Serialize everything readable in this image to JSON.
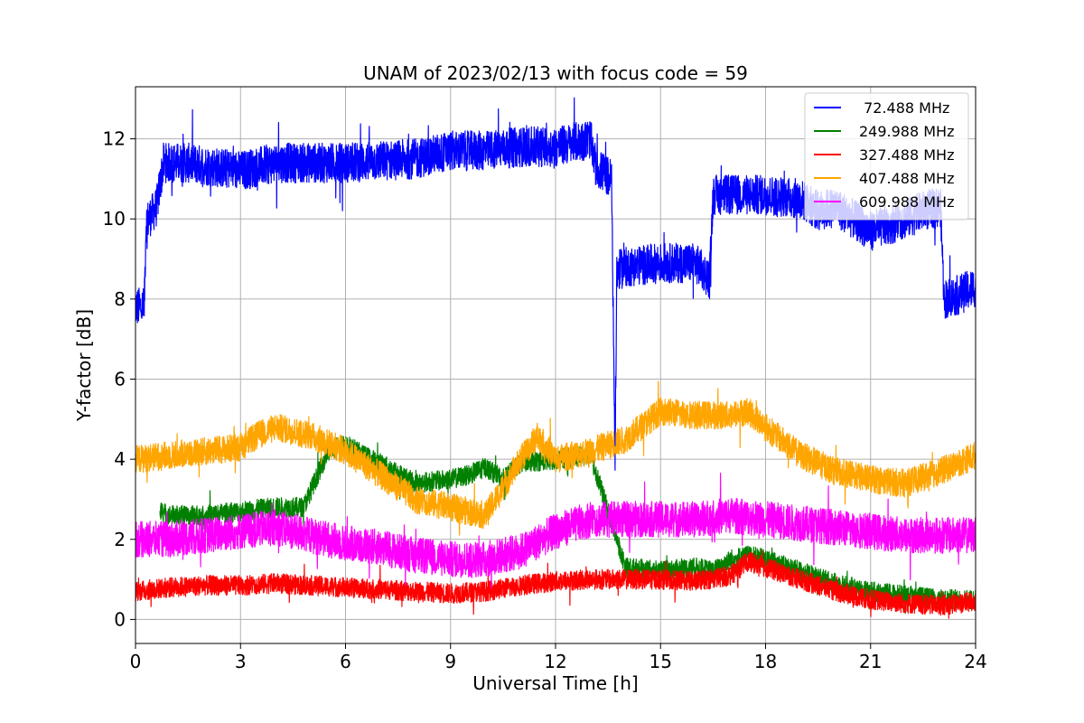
{
  "chart_data": {
    "type": "line",
    "title": "UNAM of 2023/02/13 with focus code = 59",
    "xlabel": "Universal Time [h]",
    "ylabel": "Y-factor [dB]",
    "xlim": [
      0,
      24
    ],
    "ylim": [
      -0.6,
      13.3
    ],
    "xticks": [
      0,
      3,
      6,
      9,
      12,
      15,
      18,
      21,
      24
    ],
    "xtick_labels": [
      "0",
      "3",
      "6",
      "9",
      "12",
      "15",
      "18",
      "21",
      "24"
    ],
    "yticks": [
      0,
      2,
      4,
      6,
      8,
      10,
      12
    ],
    "ytick_labels": [
      "0",
      "2",
      "4",
      "6",
      "8",
      "10",
      "12"
    ],
    "grid": true,
    "legend_position": "top-right",
    "series": [
      {
        "name": " 72.488 MHz",
        "color": "#0000ff",
        "noise": 0.5,
        "x": [
          0,
          0.25,
          0.3,
          0.6,
          0.8,
          1.5,
          3,
          4,
          6,
          8,
          9,
          10,
          11,
          12,
          13,
          13.15,
          13.6,
          13.7,
          13.75,
          14,
          15,
          16,
          16.4,
          16.5,
          17,
          18,
          19,
          19.5,
          20,
          21,
          22,
          22.5,
          23,
          23.1,
          23.5,
          24
        ],
        "y": [
          7.8,
          7.8,
          9.9,
          10.3,
          11.4,
          11.4,
          11.2,
          11.4,
          11.4,
          11.5,
          11.7,
          11.7,
          11.8,
          11.8,
          12.0,
          11.3,
          11.0,
          4.0,
          8.7,
          8.8,
          8.9,
          8.9,
          8.5,
          10.6,
          10.6,
          10.6,
          10.5,
          10.2,
          10.3,
          9.7,
          10.0,
          10.2,
          10.3,
          8.0,
          8.1,
          8.3
        ]
      },
      {
        "name": "249.988 MHz",
        "color": "#008000",
        "noise": 0.25,
        "x": [
          0.7,
          1,
          2,
          3,
          4,
          4.8,
          5,
          5.5,
          6,
          6.5,
          7,
          8,
          9,
          9.5,
          10,
          10.5,
          11,
          12,
          13,
          14,
          15,
          16,
          16.5,
          17,
          17.5,
          18,
          19,
          20,
          21,
          22,
          23,
          24
        ],
        "y": [
          2.7,
          2.6,
          2.6,
          2.7,
          2.8,
          2.8,
          3.2,
          4.2,
          4.4,
          4.1,
          3.9,
          3.4,
          3.5,
          3.6,
          3.8,
          3.5,
          3.9,
          4.0,
          4.1,
          1.3,
          1.2,
          1.3,
          1.2,
          1.5,
          1.6,
          1.5,
          1.2,
          0.9,
          0.7,
          0.6,
          0.5,
          0.5
        ]
      },
      {
        "name": "327.488 MHz",
        "color": "#ff0000",
        "noise": 0.25,
        "x": [
          0,
          1,
          2,
          3,
          4,
          5,
          6,
          7,
          8,
          9,
          10,
          11,
          12,
          13,
          14,
          15,
          16,
          17,
          17.5,
          18,
          19,
          20,
          21,
          22,
          23,
          24
        ],
        "y": [
          0.7,
          0.8,
          0.85,
          0.85,
          0.9,
          0.85,
          0.8,
          0.75,
          0.7,
          0.65,
          0.7,
          0.85,
          0.95,
          1.0,
          1.0,
          1.0,
          0.95,
          1.1,
          1.45,
          1.3,
          1.0,
          0.7,
          0.5,
          0.4,
          0.35,
          0.45
        ]
      },
      {
        "name": "407.488 MHz",
        "color": "#ffa500",
        "noise": 0.35,
        "x": [
          0,
          1,
          2,
          3,
          3.5,
          4,
          5,
          6,
          7,
          8,
          9,
          10,
          11,
          11.5,
          12,
          13,
          14,
          15,
          16,
          17,
          17.5,
          18,
          19,
          20,
          21,
          22,
          23,
          24
        ],
        "y": [
          4.0,
          4.1,
          4.2,
          4.3,
          4.6,
          4.8,
          4.6,
          4.2,
          3.6,
          3.0,
          2.8,
          2.6,
          4.0,
          4.6,
          4.0,
          4.2,
          4.5,
          5.2,
          5.1,
          5.1,
          5.2,
          4.8,
          4.1,
          3.7,
          3.5,
          3.4,
          3.7,
          4.1
        ]
      },
      {
        "name": "609.988 MHz",
        "color": "#ff00ff",
        "noise": 0.45,
        "x": [
          0,
          1,
          2,
          3,
          4,
          5,
          6,
          7,
          8,
          9,
          10,
          11,
          12,
          13,
          14,
          15,
          16,
          17,
          18,
          19,
          20,
          21,
          22,
          23,
          24
        ],
        "y": [
          2.0,
          2.0,
          2.1,
          2.2,
          2.3,
          2.1,
          1.9,
          1.8,
          1.6,
          1.5,
          1.5,
          1.7,
          2.2,
          2.5,
          2.5,
          2.5,
          2.5,
          2.6,
          2.5,
          2.4,
          2.3,
          2.2,
          2.1,
          2.1,
          2.1
        ]
      }
    ]
  }
}
